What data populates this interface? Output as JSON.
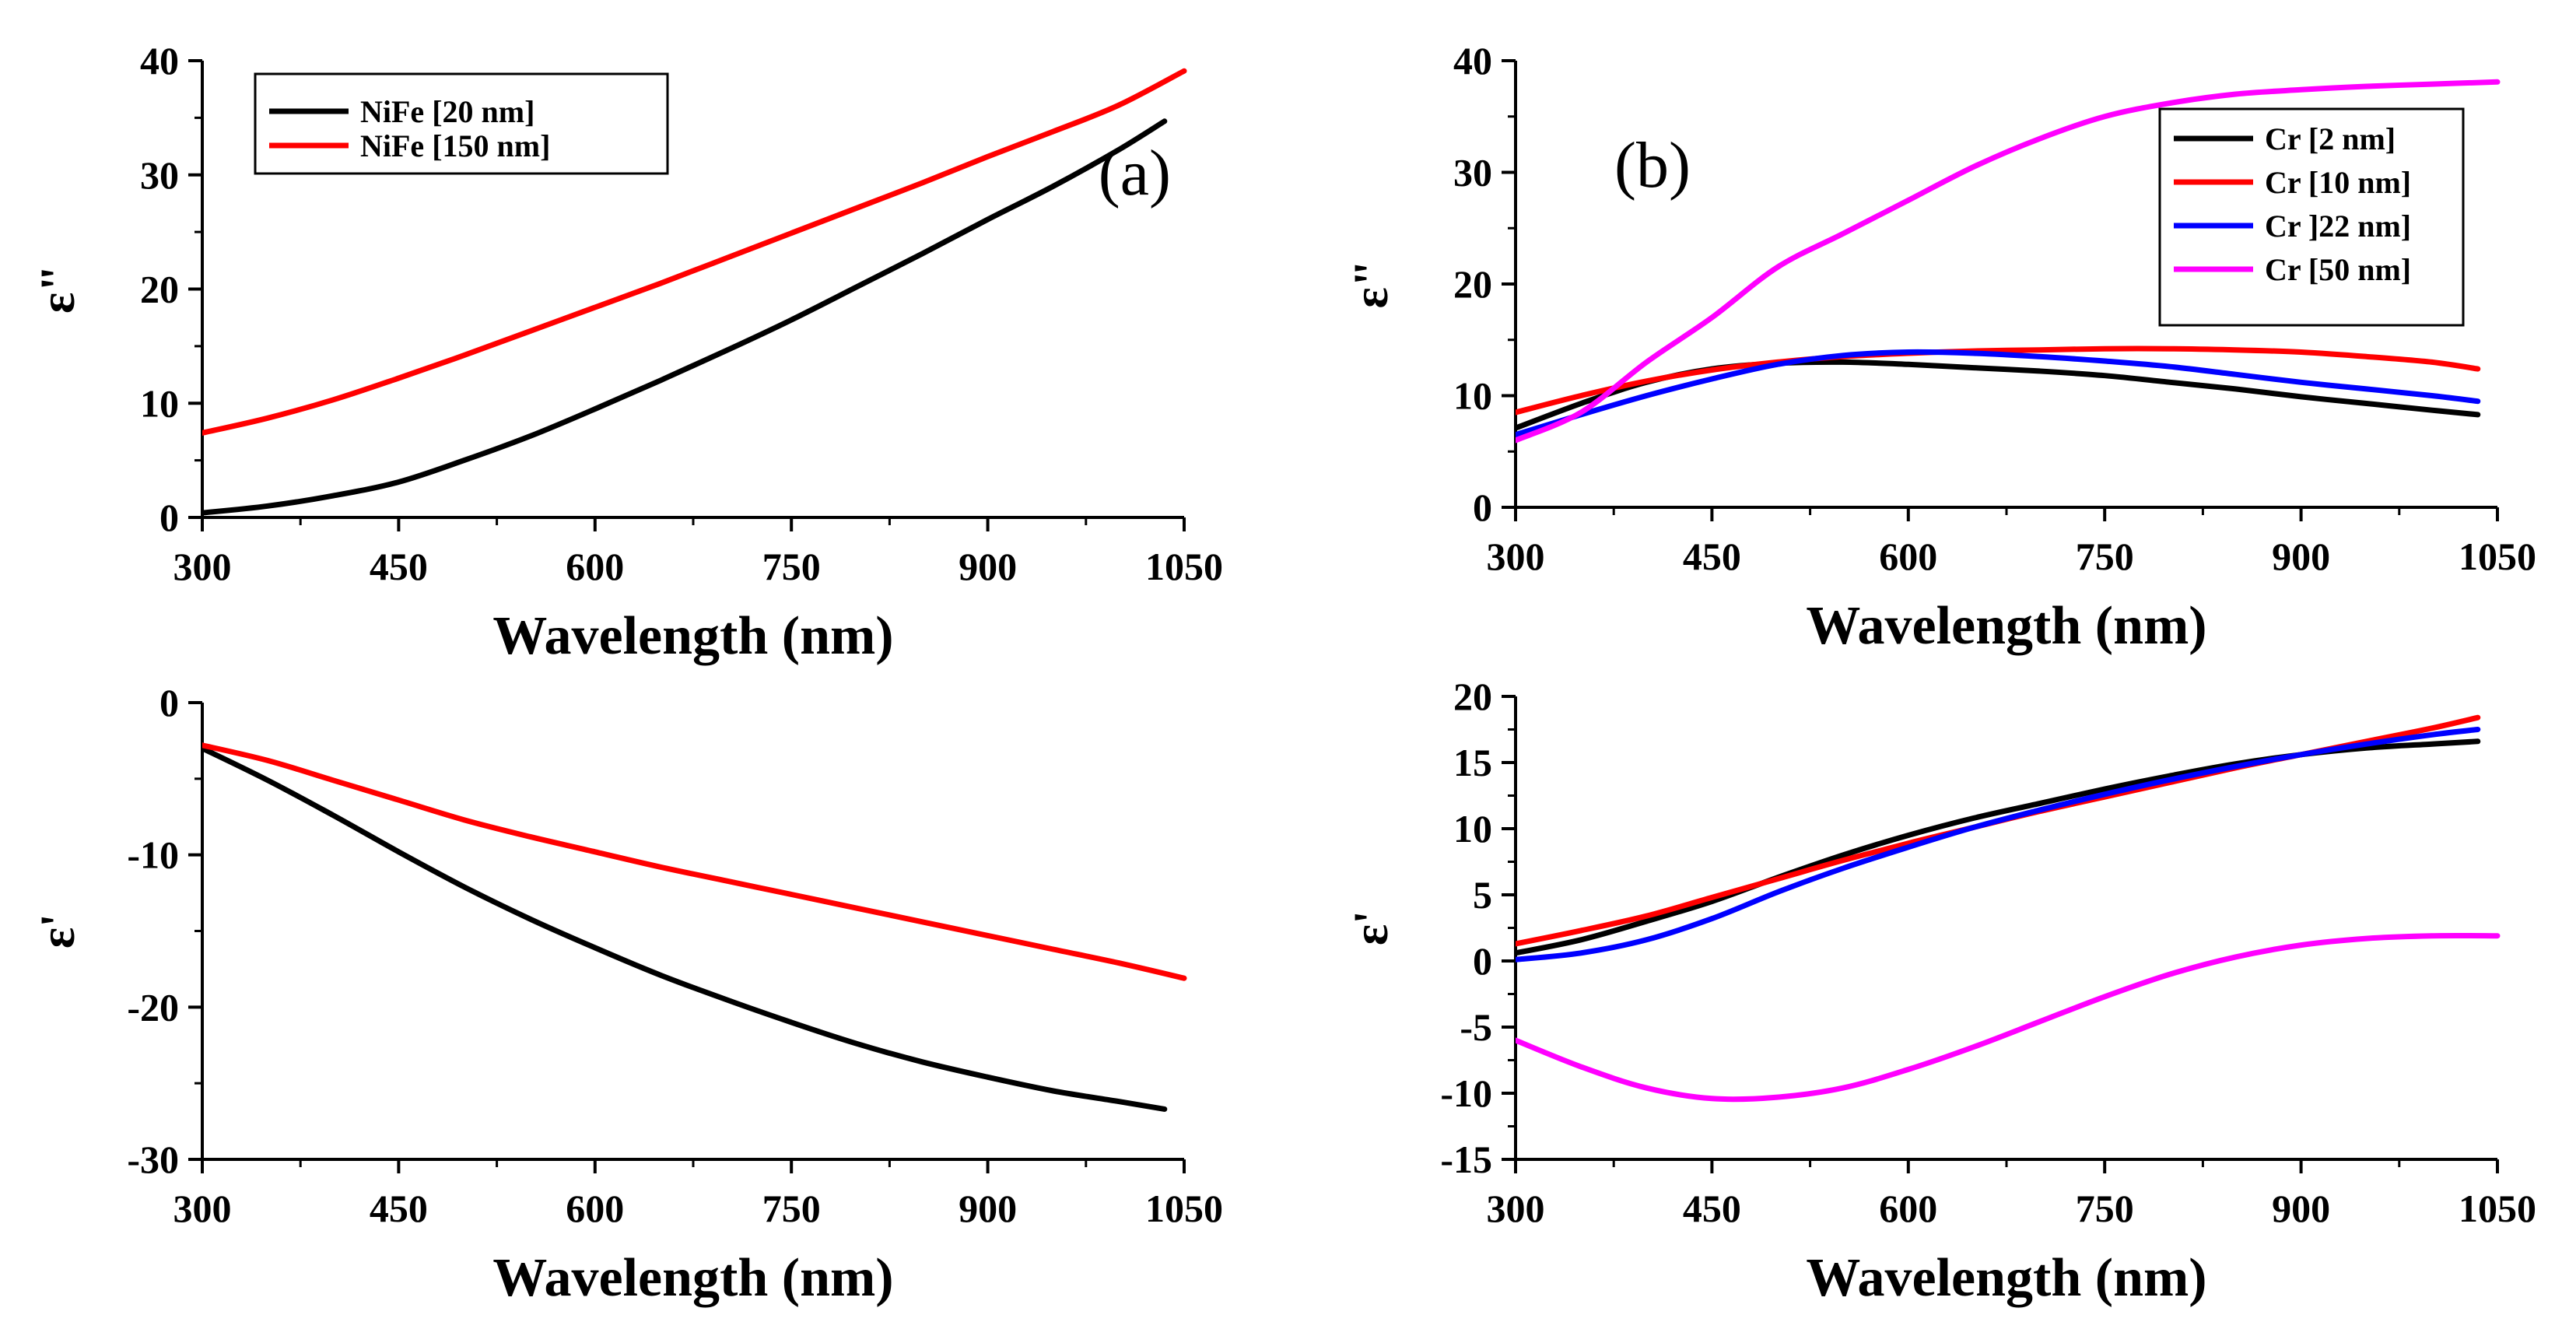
{
  "chart_data": [
    {
      "id": "a_top",
      "type": "line",
      "panel_label": "(a)",
      "xlabel": "Wavelength (nm)",
      "ylabel": "ε\"",
      "xlim": [
        300,
        1050
      ],
      "ylim": [
        0,
        40
      ],
      "xticks": [
        300,
        450,
        600,
        750,
        900,
        1050
      ],
      "yticks": [
        0,
        10,
        20,
        30,
        40
      ],
      "legend_position": "top-left",
      "series": [
        {
          "name": "NiFe [20 nm]",
          "color": "#000000",
          "x": [
            300,
            350,
            400,
            450,
            500,
            550,
            600,
            650,
            700,
            750,
            800,
            850,
            900,
            950,
            1000,
            1035
          ],
          "y": [
            0.4,
            1.0,
            1.9,
            3.1,
            5.0,
            7.1,
            9.5,
            12.0,
            14.6,
            17.3,
            20.2,
            23.1,
            26.1,
            29.0,
            32.2,
            34.7
          ]
        },
        {
          "name": "NiFe [150 nm]",
          "color": "#ff0000",
          "x": [
            300,
            350,
            400,
            450,
            500,
            550,
            600,
            650,
            700,
            750,
            800,
            850,
            900,
            950,
            1000,
            1050
          ],
          "y": [
            7.4,
            8.7,
            10.3,
            12.2,
            14.2,
            16.3,
            18.4,
            20.5,
            22.7,
            24.9,
            27.1,
            29.3,
            31.6,
            33.8,
            36.1,
            39.1
          ]
        }
      ]
    },
    {
      "id": "a_bottom",
      "type": "line",
      "xlabel": "Wavelength (nm)",
      "ylabel": "ε'",
      "xlim": [
        300,
        1050
      ],
      "ylim": [
        -30,
        0
      ],
      "xticks": [
        300,
        450,
        600,
        750,
        900,
        1050
      ],
      "yticks": [
        -30,
        -20,
        -10,
        0
      ],
      "series": [
        {
          "name": "NiFe [20 nm]",
          "color": "#000000",
          "x": [
            300,
            350,
            400,
            450,
            500,
            550,
            600,
            650,
            700,
            750,
            800,
            850,
            900,
            950,
            1000,
            1035
          ],
          "y": [
            -3.0,
            -5.1,
            -7.4,
            -9.8,
            -12.1,
            -14.2,
            -16.1,
            -17.9,
            -19.5,
            -21.0,
            -22.4,
            -23.6,
            -24.6,
            -25.5,
            -26.2,
            -26.7
          ]
        },
        {
          "name": "NiFe [150 nm]",
          "color": "#ff0000",
          "x": [
            300,
            350,
            400,
            450,
            500,
            550,
            600,
            650,
            700,
            750,
            800,
            850,
            900,
            950,
            1000,
            1050
          ],
          "y": [
            -2.8,
            -3.8,
            -5.1,
            -6.4,
            -7.7,
            -8.8,
            -9.8,
            -10.8,
            -11.7,
            -12.6,
            -13.5,
            -14.4,
            -15.3,
            -16.2,
            -17.1,
            -18.1
          ]
        }
      ]
    },
    {
      "id": "b_top",
      "type": "line",
      "panel_label": "(b)",
      "xlabel": "Wavelength (nm)",
      "ylabel": "ε\"",
      "xlim": [
        300,
        1050
      ],
      "ylim": [
        0,
        40
      ],
      "xticks": [
        300,
        450,
        600,
        750,
        900,
        1050
      ],
      "yticks": [
        0,
        10,
        20,
        30,
        40
      ],
      "legend_position": "top-right",
      "series": [
        {
          "name": "Cr [2 nm]",
          "color": "#000000",
          "x": [
            300,
            350,
            400,
            450,
            500,
            550,
            600,
            650,
            700,
            750,
            800,
            850,
            900,
            950,
            1000,
            1035
          ],
          "y": [
            7.1,
            9.3,
            11.2,
            12.4,
            12.9,
            13.0,
            12.8,
            12.5,
            12.2,
            11.8,
            11.2,
            10.6,
            9.9,
            9.3,
            8.7,
            8.3
          ]
        },
        {
          "name": "Cr [10 nm]",
          "color": "#ff0000",
          "x": [
            300,
            350,
            400,
            450,
            500,
            550,
            600,
            650,
            700,
            750,
            800,
            850,
            900,
            950,
            1000,
            1035
          ],
          "y": [
            8.5,
            10.0,
            11.3,
            12.3,
            13.0,
            13.5,
            13.8,
            14.0,
            14.1,
            14.2,
            14.2,
            14.1,
            13.9,
            13.5,
            13.0,
            12.4
          ]
        },
        {
          "name": "Cr ]22 nm]",
          "color": "#0000ff",
          "x": [
            300,
            350,
            400,
            450,
            500,
            550,
            600,
            650,
            700,
            750,
            800,
            850,
            900,
            950,
            1000,
            1035
          ],
          "y": [
            6.5,
            8.3,
            10.0,
            11.5,
            12.8,
            13.6,
            13.9,
            13.8,
            13.5,
            13.1,
            12.6,
            11.9,
            11.2,
            10.6,
            10.0,
            9.5
          ]
        },
        {
          "name": "Cr [50 nm]",
          "color": "#ff00ff",
          "x": [
            300,
            350,
            400,
            450,
            500,
            550,
            600,
            650,
            700,
            750,
            800,
            850,
            900,
            950,
            1000,
            1050
          ],
          "y": [
            6.0,
            8.5,
            13.0,
            17.0,
            21.5,
            24.5,
            27.5,
            30.5,
            33.0,
            35.0,
            36.2,
            37.0,
            37.4,
            37.7,
            37.9,
            38.1
          ]
        }
      ]
    },
    {
      "id": "b_bottom",
      "type": "line",
      "xlabel": "Wavelength (nm)",
      "ylabel": "ε'",
      "xlim": [
        300,
        1050
      ],
      "ylim": [
        -15,
        20
      ],
      "xticks": [
        300,
        450,
        600,
        750,
        900,
        1050
      ],
      "yticks": [
        -15,
        -10,
        -5,
        0,
        5,
        10,
        15,
        20
      ],
      "series": [
        {
          "name": "Cr [2 nm]",
          "color": "#000000",
          "x": [
            300,
            350,
            400,
            450,
            500,
            550,
            600,
            650,
            700,
            750,
            800,
            850,
            900,
            950,
            1000,
            1035
          ],
          "y": [
            0.6,
            1.6,
            3.0,
            4.5,
            6.3,
            8.0,
            9.5,
            10.8,
            11.9,
            13.0,
            14.0,
            14.9,
            15.6,
            16.1,
            16.4,
            16.6
          ]
        },
        {
          "name": "Cr [10 nm]",
          "color": "#ff0000",
          "x": [
            300,
            350,
            400,
            450,
            500,
            550,
            600,
            650,
            700,
            750,
            800,
            850,
            900,
            950,
            1000,
            1035
          ],
          "y": [
            1.3,
            2.3,
            3.4,
            4.8,
            6.2,
            7.6,
            8.9,
            10.1,
            11.3,
            12.4,
            13.5,
            14.6,
            15.6,
            16.6,
            17.6,
            18.4
          ]
        },
        {
          "name": "Cr ]22 nm]",
          "color": "#0000ff",
          "x": [
            300,
            350,
            400,
            450,
            500,
            550,
            600,
            650,
            700,
            750,
            800,
            850,
            900,
            950,
            1000,
            1035
          ],
          "y": [
            0.1,
            0.6,
            1.6,
            3.2,
            5.2,
            7.0,
            8.6,
            10.1,
            11.4,
            12.6,
            13.7,
            14.7,
            15.6,
            16.4,
            17.1,
            17.5
          ]
        },
        {
          "name": "Cr [50 nm]",
          "color": "#ff00ff",
          "x": [
            300,
            350,
            400,
            450,
            500,
            550,
            600,
            650,
            700,
            750,
            800,
            850,
            900,
            950,
            1000,
            1050
          ],
          "y": [
            -6.0,
            -8.0,
            -9.6,
            -10.4,
            -10.3,
            -9.6,
            -8.2,
            -6.5,
            -4.6,
            -2.7,
            -1.0,
            0.3,
            1.2,
            1.7,
            1.9,
            1.9
          ]
        }
      ]
    }
  ]
}
